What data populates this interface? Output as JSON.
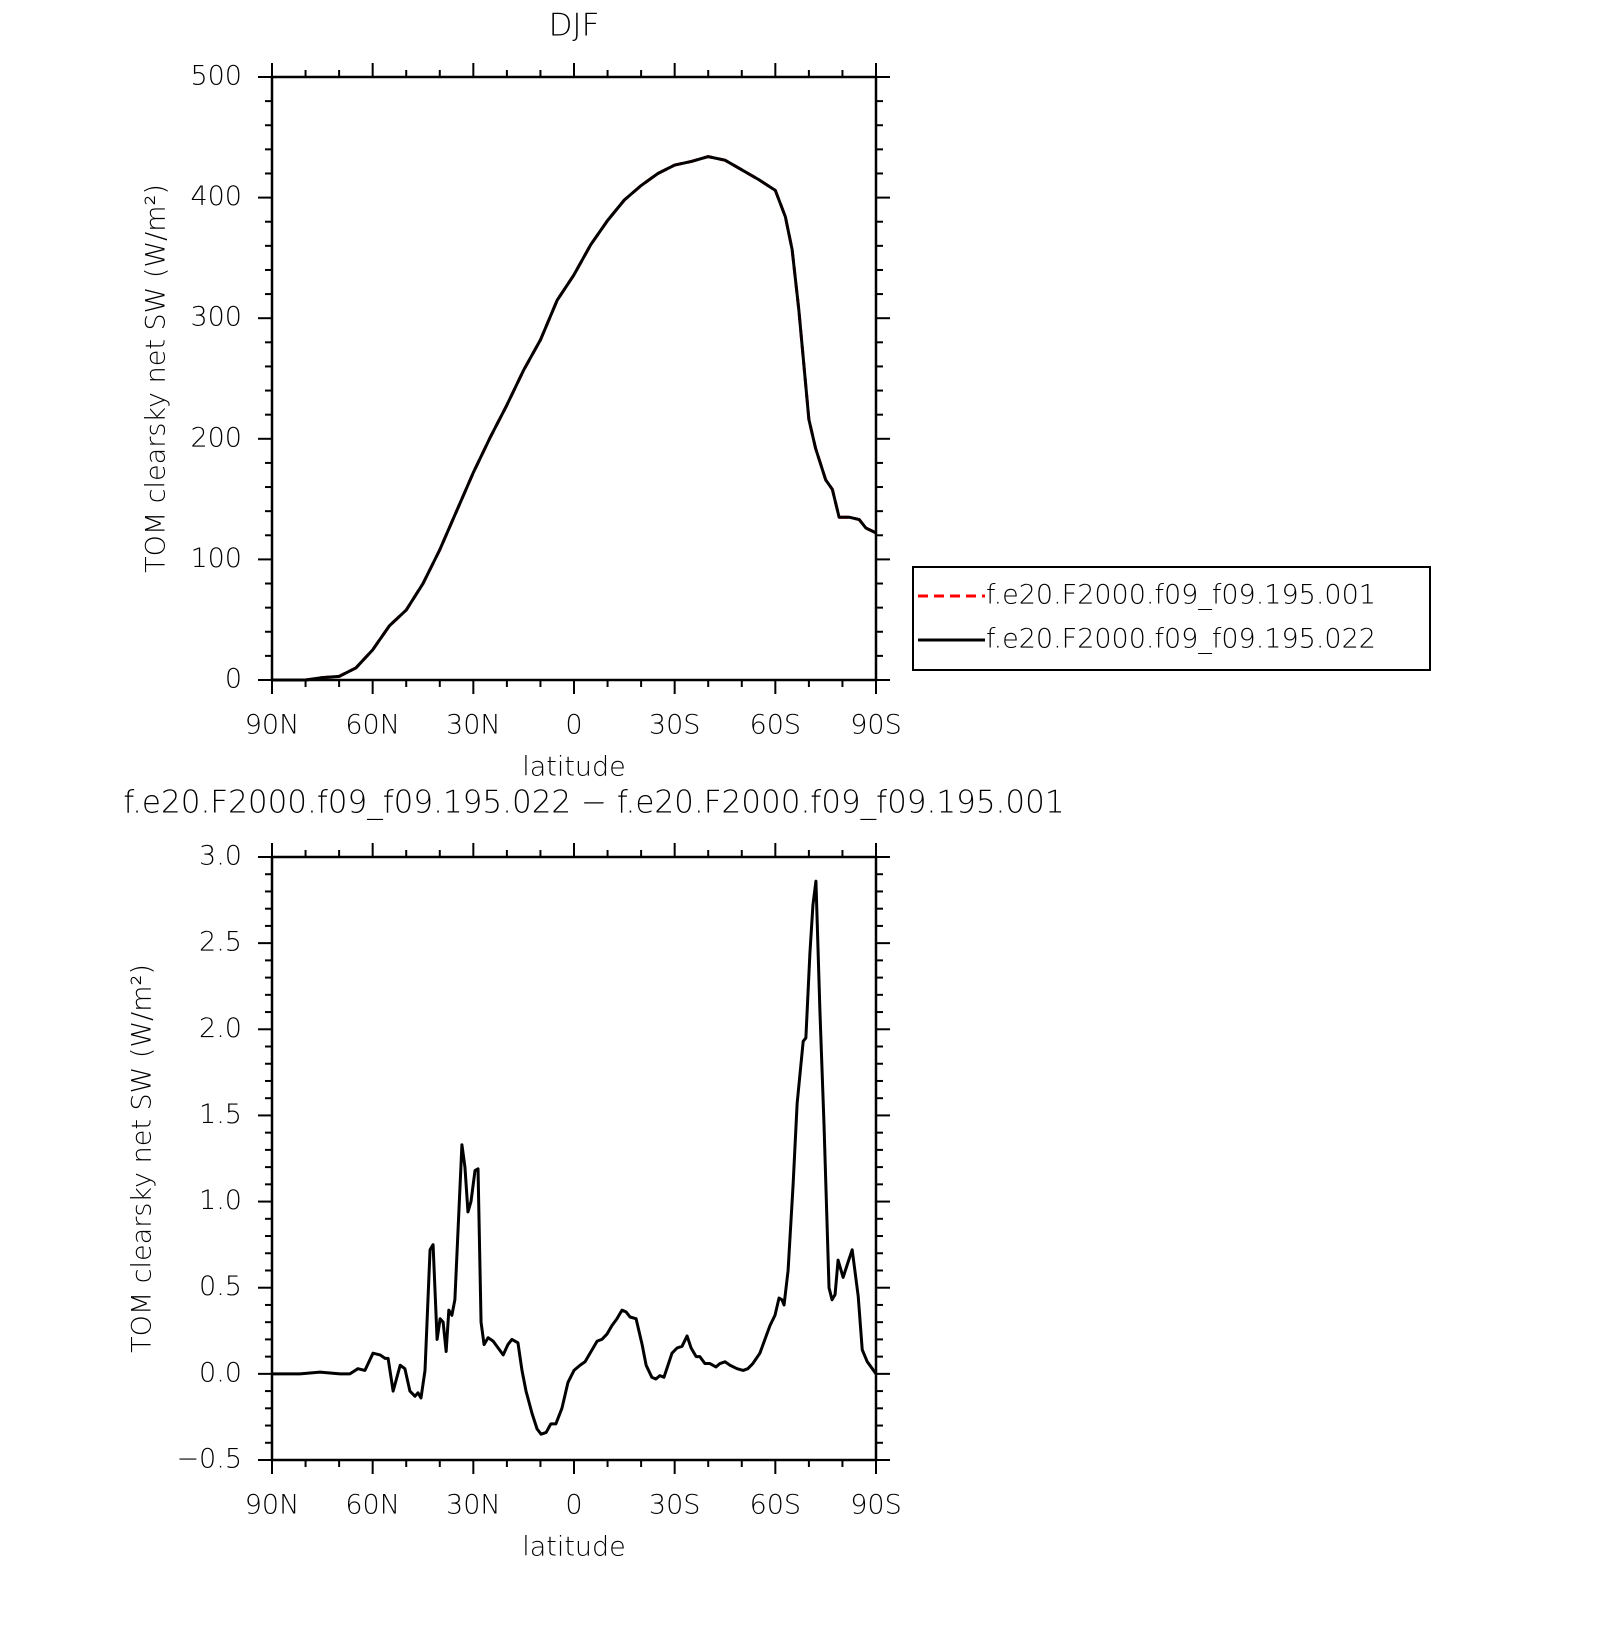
{
  "chart_data": [
    {
      "type": "line",
      "title": "DJF",
      "xlabel": "latitude",
      "ylabel": "TOM clearsky net SW (W/m²)",
      "x": [
        90,
        80,
        75,
        70,
        65,
        60,
        55,
        50,
        45,
        40,
        35,
        30,
        25,
        20,
        15,
        10,
        5,
        0,
        -5,
        -10,
        -15,
        -20,
        -25,
        -30,
        -35,
        -40,
        -45,
        -50,
        -55,
        -60,
        -63,
        -65,
        -67,
        -70,
        -72,
        -75,
        -77,
        -79,
        -82,
        -85,
        -87,
        -90
      ],
      "series": [
        {
          "name": "f.e20.F2000.f09_f09.195.001",
          "color": "#ff0000",
          "dash": true,
          "values": [
            0,
            0,
            2,
            3,
            10,
            25,
            45,
            58,
            80,
            108,
            140,
            172,
            201,
            228,
            257,
            282,
            315,
            336,
            361,
            381,
            398,
            410,
            420,
            427,
            430,
            434,
            431,
            423,
            415,
            406,
            384,
            357,
            307,
            216,
            192,
            166,
            158,
            135,
            135,
            133,
            126,
            122
          ]
        },
        {
          "name": "f.e20.F2000.f09_f09.195.022",
          "color": "#000000",
          "dash": false,
          "values": [
            0,
            0,
            2,
            3,
            10,
            25,
            45,
            58,
            80,
            108,
            140,
            172,
            201,
            228,
            257,
            282,
            315,
            336,
            361,
            381,
            398,
            410,
            420,
            427,
            430,
            434,
            431,
            423,
            415,
            406,
            384,
            357,
            307,
            216,
            192,
            166,
            158,
            135,
            135,
            133,
            126,
            122
          ]
        }
      ],
      "xlim": [
        90,
        -90
      ],
      "xticks": [
        {
          "value": 90,
          "label": "90N"
        },
        {
          "value": 60,
          "label": "60N"
        },
        {
          "value": 30,
          "label": "30N"
        },
        0,
        {
          "value": -30,
          "label": "30S"
        },
        {
          "value": -60,
          "label": "60S"
        },
        {
          "value": -90,
          "label": "90S"
        }
      ],
      "ylim": [
        0,
        500
      ],
      "yticks": [
        0,
        100,
        200,
        300,
        400,
        500
      ],
      "legend": "right"
    },
    {
      "type": "line",
      "title": "f.e20.F2000.f09_f09.195.022 − f.e20.F2000.f09_f09.195.001",
      "xlabel": "latitude",
      "ylabel": "TOM clearsky net SW (W/m²)",
      "x": [
        90,
        81.7,
        75.7,
        69.7,
        66.8,
        64.4,
        62.3,
        59.9,
        57.8,
        56.3,
        55.4,
        53.9,
        51.8,
        50.4,
        48.9,
        47.4,
        46.5,
        45.6,
        44.4,
        42.9,
        42.0,
        40.8,
        39.9,
        39.0,
        38.1,
        37.3,
        36.4,
        35.5,
        33.4,
        32.5,
        31.6,
        30.7,
        29.5,
        28.6,
        27.7,
        26.8,
        25.6,
        24.1,
        22.6,
        21.1,
        19.7,
        18.5,
        16.7,
        15.5,
        14.3,
        12.5,
        11.0,
        9.8,
        8.3,
        6.9,
        5.4,
        3.6,
        1.8,
        0,
        -1.8,
        -3.3,
        -4.8,
        -6.9,
        -8.3,
        -9.8,
        -11.3,
        -12.8,
        -14.3,
        -15.5,
        -16.7,
        -18.5,
        -20.3,
        -21.5,
        -23.2,
        -24.4,
        -25.6,
        -26.8,
        -28.0,
        -29.2,
        -30.7,
        -32.2,
        -33.7,
        -34.9,
        -36.4,
        -37.5,
        -39.0,
        -40.5,
        -42.3,
        -43.5,
        -45.0,
        -46.5,
        -48.6,
        -50.4,
        -51.8,
        -53.3,
        -55.4,
        -56.9,
        -58.4,
        -59.9,
        -61.1,
        -62.0,
        -62.6,
        -63.8,
        -65.3,
        -66.5,
        -68.3,
        -69.1,
        -70.3,
        -71.2,
        -72.1,
        -73.3,
        -74.5,
        -76.0,
        -76.9,
        -77.8,
        -78.7,
        -80.2,
        -81.7,
        -82.9,
        -84.7,
        -85.9,
        -87.4,
        -88.9,
        -90
      ],
      "series": [
        {
          "name": "f.e20.F2000.f09_f09.195.022 − f.e20.F2000.f09_f09.195.001",
          "color": "#000000",
          "dash": false,
          "values": [
            0,
            0,
            0.01,
            0,
            0,
            0.03,
            0.02,
            0.12,
            0.11,
            0.09,
            0.09,
            -0.1,
            0.05,
            0.03,
            -0.1,
            -0.13,
            -0.11,
            -0.14,
            0.02,
            0.72,
            0.75,
            0.2,
            0.32,
            0.3,
            0.13,
            0.37,
            0.34,
            0.43,
            1.33,
            1.2,
            0.94,
            1.0,
            1.18,
            1.19,
            0.3,
            0.17,
            0.21,
            0.19,
            0.15,
            0.11,
            0.17,
            0.2,
            0.18,
            0.02,
            -0.1,
            -0.23,
            -0.32,
            -0.35,
            -0.34,
            -0.29,
            -0.29,
            -0.2,
            -0.05,
            0.02,
            0.05,
            0.07,
            0.12,
            0.19,
            0.2,
            0.23,
            0.28,
            0.32,
            0.37,
            0.36,
            0.33,
            0.32,
            0.17,
            0.05,
            -0.02,
            -0.03,
            -0.01,
            -0.02,
            0.05,
            0.12,
            0.15,
            0.16,
            0.22,
            0.15,
            0.1,
            0.1,
            0.06,
            0.06,
            0.04,
            0.06,
            0.07,
            0.05,
            0.03,
            0.02,
            0.03,
            0.06,
            0.12,
            0.2,
            0.28,
            0.34,
            0.44,
            0.43,
            0.4,
            0.6,
            1.1,
            1.57,
            1.93,
            1.95,
            2.44,
            2.72,
            2.86,
            2.1,
            1.45,
            0.5,
            0.43,
            0.46,
            0.66,
            0.56,
            0.65,
            0.72,
            0.45,
            0.14,
            0.07,
            0.03,
            0
          ]
        }
      ],
      "xlim": [
        90,
        -90
      ],
      "xticks": [
        {
          "value": 90,
          "label": "90N"
        },
        {
          "value": 60,
          "label": "60N"
        },
        {
          "value": 30,
          "label": "30N"
        },
        0,
        {
          "value": -30,
          "label": "30S"
        },
        {
          "value": -60,
          "label": "60S"
        },
        {
          "value": -90,
          "label": "90S"
        }
      ],
      "ylim": [
        -0.5,
        3
      ],
      "yticks": [
        {
          "value": -0.5,
          "label": "−0.5"
        },
        {
          "value": 0,
          "label": "0.0"
        },
        {
          "value": 0.5,
          "label": "0.5"
        },
        {
          "value": 1,
          "label": "1.0"
        },
        {
          "value": 1.5,
          "label": "1.5"
        },
        {
          "value": 2,
          "label": "2.0"
        },
        {
          "value": 2.5,
          "label": "2.5"
        },
        {
          "value": 3,
          "label": "3.0"
        }
      ]
    }
  ]
}
